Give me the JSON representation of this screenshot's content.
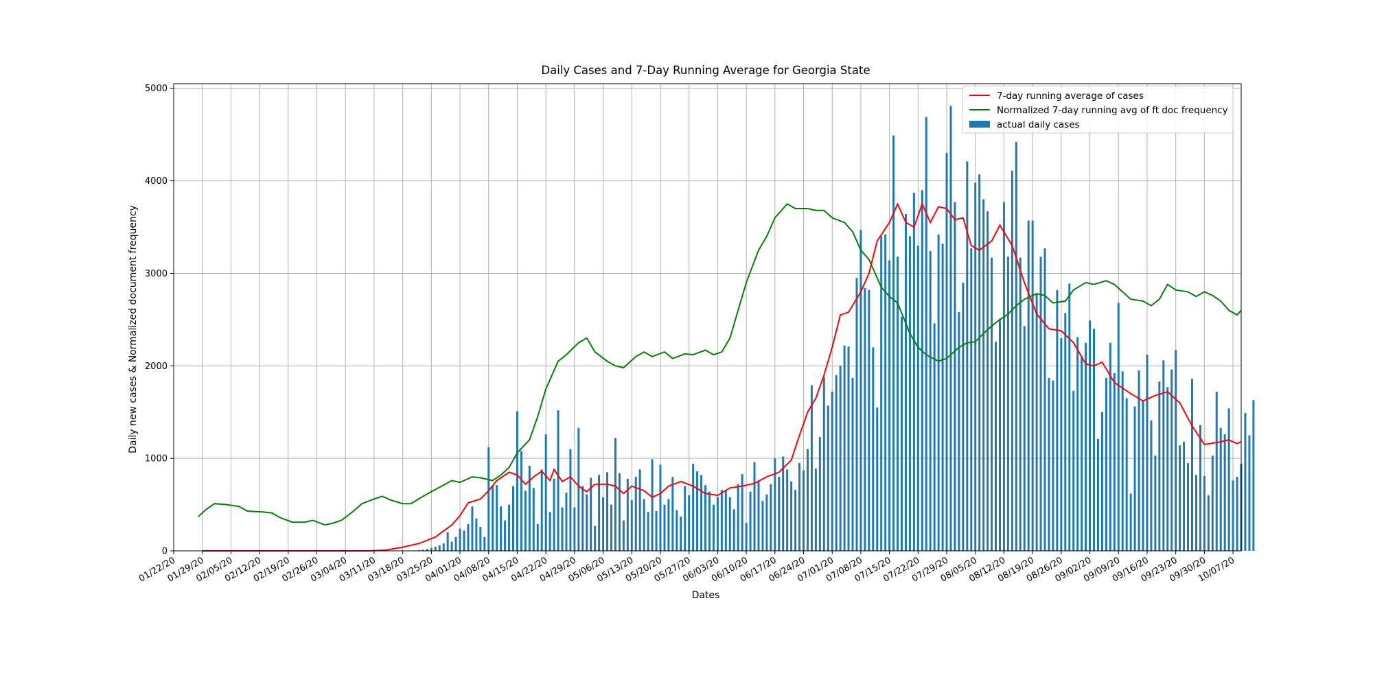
{
  "chart_data": {
    "type": "bar+line",
    "title": "Daily Cases and 7-Day Running Average for Georgia State",
    "xlabel": "Dates",
    "ylabel": "Daily new cases & Normalized document frequency",
    "x_start": "2020-01-22",
    "x_end": "2020-10-09",
    "ylim": [
      0,
      5050
    ],
    "yticks": [
      0,
      1000,
      2000,
      3000,
      4000,
      5000
    ],
    "xtick_labels": [
      "01/22/20",
      "01/29/20",
      "02/05/20",
      "02/12/20",
      "02/19/20",
      "02/26/20",
      "03/04/20",
      "03/11/20",
      "03/18/20",
      "03/25/20",
      "04/01/20",
      "04/08/20",
      "04/15/20",
      "04/22/20",
      "04/29/20",
      "05/06/20",
      "05/13/20",
      "05/20/20",
      "05/27/20",
      "06/03/20",
      "06/10/20",
      "06/17/20",
      "06/24/20",
      "07/01/20",
      "07/08/20",
      "07/15/20",
      "07/22/20",
      "07/29/20",
      "08/05/20",
      "08/12/20",
      "08/19/20",
      "08/26/20",
      "09/02/20",
      "09/09/20",
      "09/16/20",
      "09/23/20",
      "09/30/20",
      "10/07/20"
    ],
    "grid": true,
    "legend_position": "top-right",
    "colors": {
      "avg": "#ff0000",
      "ft": "#008000",
      "bars": "#1f77b4"
    },
    "series": [
      {
        "name": "7-day running average of cases",
        "kind": "line",
        "points": [
          [
            "2020-01-29",
            0
          ],
          [
            "2020-03-10",
            0
          ],
          [
            "2020-03-14",
            10
          ],
          [
            "2020-03-18",
            40
          ],
          [
            "2020-03-22",
            80
          ],
          [
            "2020-03-26",
            150
          ],
          [
            "2020-03-30",
            280
          ],
          [
            "2020-04-01",
            380
          ],
          [
            "2020-04-03",
            520
          ],
          [
            "2020-04-06",
            560
          ],
          [
            "2020-04-08",
            650
          ],
          [
            "2020-04-10",
            760
          ],
          [
            "2020-04-13",
            850
          ],
          [
            "2020-04-15",
            820
          ],
          [
            "2020-04-17",
            720
          ],
          [
            "2020-04-19",
            800
          ],
          [
            "2020-04-21",
            860
          ],
          [
            "2020-04-23",
            760
          ],
          [
            "2020-04-24",
            880
          ],
          [
            "2020-04-26",
            750
          ],
          [
            "2020-04-28",
            800
          ],
          [
            "2020-04-30",
            700
          ],
          [
            "2020-05-02",
            640
          ],
          [
            "2020-05-04",
            720
          ],
          [
            "2020-05-07",
            720
          ],
          [
            "2020-05-09",
            700
          ],
          [
            "2020-05-11",
            620
          ],
          [
            "2020-05-13",
            700
          ],
          [
            "2020-05-16",
            650
          ],
          [
            "2020-05-18",
            580
          ],
          [
            "2020-05-20",
            620
          ],
          [
            "2020-05-22",
            700
          ],
          [
            "2020-05-25",
            750
          ],
          [
            "2020-05-28",
            700
          ],
          [
            "2020-05-31",
            620
          ],
          [
            "2020-06-03",
            600
          ],
          [
            "2020-06-06",
            680
          ],
          [
            "2020-06-09",
            700
          ],
          [
            "2020-06-12",
            730
          ],
          [
            "2020-06-15",
            800
          ],
          [
            "2020-06-18",
            850
          ],
          [
            "2020-06-21",
            980
          ],
          [
            "2020-06-23",
            1250
          ],
          [
            "2020-06-25",
            1500
          ],
          [
            "2020-06-27",
            1650
          ],
          [
            "2020-06-29",
            1900
          ],
          [
            "2020-07-01",
            2200
          ],
          [
            "2020-07-03",
            2550
          ],
          [
            "2020-07-05",
            2580
          ],
          [
            "2020-07-08",
            2800
          ],
          [
            "2020-07-10",
            3000
          ],
          [
            "2020-07-12",
            3350
          ],
          [
            "2020-07-15",
            3550
          ],
          [
            "2020-07-17",
            3750
          ],
          [
            "2020-07-19",
            3550
          ],
          [
            "2020-07-21",
            3500
          ],
          [
            "2020-07-23",
            3750
          ],
          [
            "2020-07-25",
            3550
          ],
          [
            "2020-07-27",
            3720
          ],
          [
            "2020-07-29",
            3700
          ],
          [
            "2020-07-31",
            3580
          ],
          [
            "2020-08-02",
            3600
          ],
          [
            "2020-08-04",
            3300
          ],
          [
            "2020-08-06",
            3250
          ],
          [
            "2020-08-09",
            3350
          ],
          [
            "2020-08-11",
            3520
          ],
          [
            "2020-08-14",
            3300
          ],
          [
            "2020-08-17",
            2900
          ],
          [
            "2020-08-20",
            2560
          ],
          [
            "2020-08-23",
            2400
          ],
          [
            "2020-08-26",
            2380
          ],
          [
            "2020-08-29",
            2250
          ],
          [
            "2020-09-01",
            2020
          ],
          [
            "2020-09-03",
            2000
          ],
          [
            "2020-09-05",
            2040
          ],
          [
            "2020-09-08",
            1820
          ],
          [
            "2020-09-12",
            1700
          ],
          [
            "2020-09-15",
            1620
          ],
          [
            "2020-09-18",
            1680
          ],
          [
            "2020-09-21",
            1720
          ],
          [
            "2020-09-24",
            1600
          ],
          [
            "2020-09-27",
            1350
          ],
          [
            "2020-09-30",
            1150
          ],
          [
            "2020-10-03",
            1170
          ],
          [
            "2020-10-06",
            1200
          ],
          [
            "2020-10-08",
            1160
          ],
          [
            "2020-10-09",
            1180
          ]
        ]
      },
      {
        "name": "Normalized 7-day running avg of ft doc frequency",
        "kind": "line",
        "points": [
          [
            "2020-01-28",
            370
          ],
          [
            "2020-01-30",
            450
          ],
          [
            "2020-02-01",
            510
          ],
          [
            "2020-02-04",
            500
          ],
          [
            "2020-02-07",
            480
          ],
          [
            "2020-02-09",
            430
          ],
          [
            "2020-02-13",
            420
          ],
          [
            "2020-02-15",
            410
          ],
          [
            "2020-02-17",
            360
          ],
          [
            "2020-02-20",
            310
          ],
          [
            "2020-02-23",
            310
          ],
          [
            "2020-02-25",
            330
          ],
          [
            "2020-02-28",
            280
          ],
          [
            "2020-03-01",
            300
          ],
          [
            "2020-03-03",
            330
          ],
          [
            "2020-03-06",
            430
          ],
          [
            "2020-03-08",
            510
          ],
          [
            "2020-03-11",
            560
          ],
          [
            "2020-03-13",
            590
          ],
          [
            "2020-03-15",
            550
          ],
          [
            "2020-03-18",
            510
          ],
          [
            "2020-03-20",
            510
          ],
          [
            "2020-03-23",
            590
          ],
          [
            "2020-03-25",
            640
          ],
          [
            "2020-03-28",
            710
          ],
          [
            "2020-03-30",
            760
          ],
          [
            "2020-04-01",
            740
          ],
          [
            "2020-04-04",
            800
          ],
          [
            "2020-04-06",
            790
          ],
          [
            "2020-04-09",
            760
          ],
          [
            "2020-04-11",
            820
          ],
          [
            "2020-04-13",
            900
          ],
          [
            "2020-04-15",
            1060
          ],
          [
            "2020-04-18",
            1200
          ],
          [
            "2020-04-20",
            1450
          ],
          [
            "2020-04-22",
            1750
          ],
          [
            "2020-04-25",
            2050
          ],
          [
            "2020-04-27",
            2120
          ],
          [
            "2020-04-30",
            2250
          ],
          [
            "2020-05-02",
            2300
          ],
          [
            "2020-05-04",
            2150
          ],
          [
            "2020-05-07",
            2050
          ],
          [
            "2020-05-09",
            2000
          ],
          [
            "2020-05-11",
            1980
          ],
          [
            "2020-05-14",
            2100
          ],
          [
            "2020-05-16",
            2150
          ],
          [
            "2020-05-18",
            2100
          ],
          [
            "2020-05-21",
            2150
          ],
          [
            "2020-05-23",
            2080
          ],
          [
            "2020-05-26",
            2130
          ],
          [
            "2020-05-28",
            2120
          ],
          [
            "2020-05-31",
            2170
          ],
          [
            "2020-06-02",
            2120
          ],
          [
            "2020-06-04",
            2150
          ],
          [
            "2020-06-06",
            2300
          ],
          [
            "2020-06-08",
            2600
          ],
          [
            "2020-06-10",
            2900
          ],
          [
            "2020-06-13",
            3250
          ],
          [
            "2020-06-15",
            3400
          ],
          [
            "2020-06-17",
            3600
          ],
          [
            "2020-06-20",
            3750
          ],
          [
            "2020-06-22",
            3700
          ],
          [
            "2020-06-25",
            3700
          ],
          [
            "2020-06-27",
            3680
          ],
          [
            "2020-06-29",
            3680
          ],
          [
            "2020-07-01",
            3600
          ],
          [
            "2020-07-04",
            3550
          ],
          [
            "2020-07-06",
            3450
          ],
          [
            "2020-07-08",
            3250
          ],
          [
            "2020-07-10",
            3150
          ],
          [
            "2020-07-13",
            2850
          ],
          [
            "2020-07-15",
            2750
          ],
          [
            "2020-07-17",
            2680
          ],
          [
            "2020-07-20",
            2350
          ],
          [
            "2020-07-22",
            2200
          ],
          [
            "2020-07-24",
            2120
          ],
          [
            "2020-07-27",
            2050
          ],
          [
            "2020-07-29",
            2080
          ],
          [
            "2020-08-01",
            2200
          ],
          [
            "2020-08-03",
            2250
          ],
          [
            "2020-08-05",
            2260
          ],
          [
            "2020-08-07",
            2350
          ],
          [
            "2020-08-09",
            2430
          ],
          [
            "2020-08-11",
            2500
          ],
          [
            "2020-08-13",
            2560
          ],
          [
            "2020-08-15",
            2650
          ],
          [
            "2020-08-17",
            2720
          ],
          [
            "2020-08-20",
            2780
          ],
          [
            "2020-08-22",
            2760
          ],
          [
            "2020-08-24",
            2680
          ],
          [
            "2020-08-27",
            2700
          ],
          [
            "2020-08-29",
            2820
          ],
          [
            "2020-09-01",
            2900
          ],
          [
            "2020-09-03",
            2880
          ],
          [
            "2020-09-06",
            2920
          ],
          [
            "2020-09-08",
            2880
          ],
          [
            "2020-09-10",
            2800
          ],
          [
            "2020-09-12",
            2720
          ],
          [
            "2020-09-15",
            2700
          ],
          [
            "2020-09-17",
            2650
          ],
          [
            "2020-09-19",
            2720
          ],
          [
            "2020-09-21",
            2880
          ],
          [
            "2020-09-23",
            2820
          ],
          [
            "2020-09-26",
            2800
          ],
          [
            "2020-09-28",
            2750
          ],
          [
            "2020-09-30",
            2800
          ],
          [
            "2020-10-02",
            2760
          ],
          [
            "2020-10-04",
            2700
          ],
          [
            "2020-10-06",
            2600
          ],
          [
            "2020-10-08",
            2550
          ],
          [
            "2020-10-09",
            2600
          ]
        ]
      },
      {
        "name": "actual daily cases",
        "kind": "bar",
        "values": [
          0,
          0,
          0,
          0,
          0,
          0,
          0,
          0,
          0,
          0,
          0,
          0,
          0,
          0,
          0,
          0,
          0,
          0,
          0,
          0,
          0,
          0,
          0,
          0,
          0,
          0,
          0,
          0,
          0,
          0,
          0,
          0,
          0,
          0,
          0,
          0,
          0,
          0,
          0,
          0,
          0,
          0,
          0,
          0,
          0,
          0,
          0,
          0,
          0,
          0,
          2,
          3,
          5,
          8,
          12,
          20,
          30,
          45,
          60,
          80,
          200,
          100,
          150,
          240,
          220,
          290,
          480,
          350,
          260,
          150,
          1120,
          700,
          710,
          480,
          330,
          500,
          700,
          1510,
          1080,
          650,
          920,
          680,
          290,
          880,
          1260,
          420,
          780,
          1520,
          470,
          630,
          1100,
          470,
          1330,
          700,
          610,
          790,
          270,
          820,
          580,
          850,
          500,
          1220,
          840,
          330,
          780,
          550,
          800,
          880,
          560,
          420,
          990,
          430,
          930,
          500,
          560,
          800,
          440,
          370,
          700,
          600,
          940,
          860,
          820,
          710,
          640,
          500,
          580,
          660,
          650,
          580,
          450,
          720,
          830,
          300,
          640,
          960,
          760,
          540,
          610,
          720,
          1000,
          800,
          1020,
          880,
          750,
          660,
          950,
          870,
          1100,
          1790,
          890,
          1230,
          1880,
          1570,
          1720,
          1900,
          2000,
          2220,
          2210,
          1870,
          2950,
          3470,
          2840,
          2820,
          2200,
          1550,
          3400,
          3420,
          3140,
          4490,
          3180,
          2530,
          3640,
          3400,
          3870,
          3300,
          3900,
          4690,
          3240,
          2460,
          3420,
          3320,
          4300,
          4810,
          3770,
          2580,
          2900,
          4210,
          3270,
          3980,
          4070,
          3800,
          3670,
          3170,
          2260,
          2510,
          3770,
          3180,
          4110,
          4420,
          3170,
          2430,
          3570,
          3570,
          2780,
          3180,
          3270,
          1870,
          1840,
          2820,
          2300,
          2570,
          2890,
          1730,
          2310,
          2110,
          2250,
          2490,
          2400,
          1210,
          1500,
          1870,
          2250,
          1920,
          2680,
          1940,
          1650,
          620,
          1560,
          1950,
          1620,
          2120,
          1410,
          1030,
          1830,
          2060,
          1770,
          1960,
          2170,
          1140,
          1180,
          950,
          1860,
          820,
          1360,
          810,
          600,
          1030,
          1720,
          1330,
          1260,
          1540,
          760,
          800,
          940,
          1490,
          1250,
          1630
        ]
      }
    ]
  }
}
